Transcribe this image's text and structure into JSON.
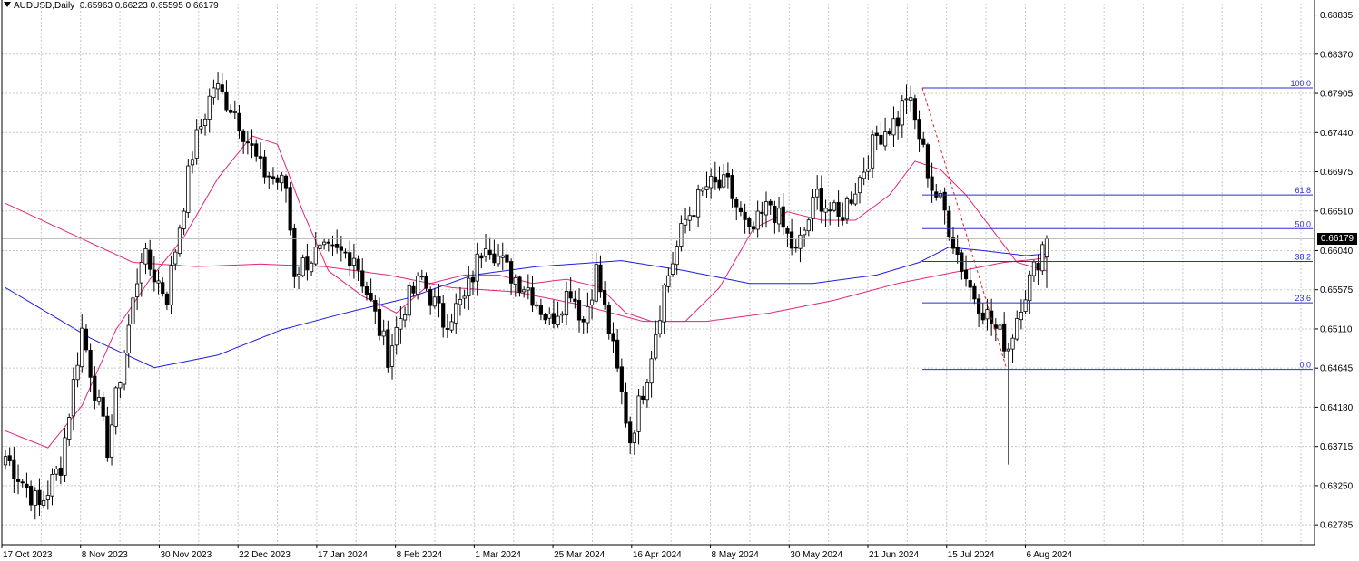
{
  "header": {
    "symbol": "AUDUSD,Daily",
    "ohlc": "0.65963 0.66223 0.65595 0.66179"
  },
  "current_price_label": "0.66179",
  "colors": {
    "candle": "#000000",
    "ma_blue": "#1e1ee6",
    "ma_pink": "#e0287a",
    "fib": "#2b2bd8",
    "trend_dash": "#e02020",
    "grid": "#c8c8c8"
  },
  "chart_data": {
    "type": "candlestick",
    "symbol": "AUDUSD",
    "timeframe": "Daily",
    "y_axis": {
      "ticks": [
        "0.68835",
        "0.68370",
        "0.67905",
        "0.67440",
        "0.66975",
        "0.66510",
        "0.66040",
        "0.65575",
        "0.65110",
        "0.64645",
        "0.64180",
        "0.63715",
        "0.63250",
        "0.62785"
      ],
      "ylim": [
        0.6255,
        0.6897
      ]
    },
    "x_axis": {
      "ticks": [
        "17 Oct 2023",
        "8 Nov 2023",
        "30 Nov 2023",
        "22 Dec 2023",
        "17 Jan 2024",
        "8 Feb 2024",
        "1 Mar 2024",
        "25 Mar 2024",
        "16 Apr 2024",
        "8 May 2024",
        "30 May 2024",
        "21 Jun 2024",
        "15 Jul 2024",
        "6 Aug 2024"
      ]
    },
    "price_anchors": [
      [
        0,
        0.636
      ],
      [
        8,
        0.63
      ],
      [
        13,
        0.635
      ],
      [
        18,
        0.651
      ],
      [
        24,
        0.637
      ],
      [
        32,
        0.66
      ],
      [
        38,
        0.655
      ],
      [
        44,
        0.672
      ],
      [
        49,
        0.68
      ],
      [
        54,
        0.677
      ],
      [
        60,
        0.67
      ],
      [
        66,
        0.668
      ],
      [
        68,
        0.658
      ],
      [
        73,
        0.66
      ],
      [
        78,
        0.66
      ],
      [
        82,
        0.66
      ],
      [
        86,
        0.654
      ],
      [
        90,
        0.648
      ],
      [
        94,
        0.654
      ],
      [
        98,
        0.657
      ],
      [
        103,
        0.652
      ],
      [
        108,
        0.6545
      ],
      [
        113,
        0.662
      ],
      [
        118,
        0.658
      ],
      [
        123,
        0.656
      ],
      [
        128,
        0.652
      ],
      [
        133,
        0.656
      ],
      [
        136,
        0.652
      ],
      [
        139,
        0.658
      ],
      [
        142,
        0.651
      ],
      [
        147,
        0.638
      ],
      [
        151,
        0.646
      ],
      [
        155,
        0.656
      ],
      [
        160,
        0.664
      ],
      [
        165,
        0.668
      ],
      [
        170,
        0.668
      ],
      [
        175,
        0.662
      ],
      [
        180,
        0.666
      ],
      [
        186,
        0.66
      ],
      [
        191,
        0.667
      ],
      [
        196,
        0.664
      ],
      [
        201,
        0.669
      ],
      [
        205,
        0.674
      ],
      [
        210,
        0.676
      ],
      [
        212,
        0.679
      ],
      [
        215,
        0.674
      ],
      [
        218,
        0.668
      ],
      [
        221,
        0.665
      ],
      [
        224,
        0.66
      ],
      [
        227,
        0.656
      ],
      [
        230,
        0.6535
      ],
      [
        233,
        0.651
      ],
      [
        236,
        0.649
      ],
      [
        239,
        0.6545
      ],
      [
        242,
        0.658
      ],
      [
        244,
        0.661
      ],
      [
        245,
        0.6618
      ]
    ],
    "moving_averages": [
      {
        "color": "#1e1ee6",
        "points": [
          [
            0,
            0.656
          ],
          [
            20,
            0.65
          ],
          [
            35,
            0.6465
          ],
          [
            50,
            0.648
          ],
          [
            65,
            0.651
          ],
          [
            80,
            0.653
          ],
          [
            95,
            0.6548
          ],
          [
            110,
            0.6575
          ],
          [
            125,
            0.6585
          ],
          [
            145,
            0.6592
          ],
          [
            160,
            0.658
          ],
          [
            175,
            0.6565
          ],
          [
            190,
            0.6565
          ],
          [
            205,
            0.6575
          ],
          [
            215,
            0.659
          ],
          [
            222,
            0.6608
          ],
          [
            230,
            0.6604
          ],
          [
            240,
            0.6598
          ],
          [
            245,
            0.66
          ]
        ]
      },
      {
        "color": "#e0287a",
        "points": [
          [
            0,
            0.666
          ],
          [
            15,
            0.6625
          ],
          [
            30,
            0.659
          ],
          [
            45,
            0.6585
          ],
          [
            60,
            0.6588
          ],
          [
            75,
            0.6585
          ],
          [
            90,
            0.6575
          ],
          [
            105,
            0.656
          ],
          [
            120,
            0.6555
          ],
          [
            135,
            0.654
          ],
          [
            150,
            0.652
          ],
          [
            165,
            0.652
          ],
          [
            180,
            0.653
          ],
          [
            195,
            0.6545
          ],
          [
            210,
            0.6565
          ],
          [
            225,
            0.658
          ],
          [
            235,
            0.659
          ],
          [
            245,
            0.6595
          ]
        ]
      },
      {
        "color": "#e0287a",
        "points": [
          [
            0,
            0.639
          ],
          [
            10,
            0.637
          ],
          [
            18,
            0.642
          ],
          [
            26,
            0.651
          ],
          [
            34,
            0.657
          ],
          [
            42,
            0.662
          ],
          [
            50,
            0.669
          ],
          [
            58,
            0.674
          ],
          [
            64,
            0.673
          ],
          [
            70,
            0.665
          ],
          [
            76,
            0.658
          ],
          [
            84,
            0.655
          ],
          [
            92,
            0.653
          ],
          [
            100,
            0.6565
          ],
          [
            108,
            0.6575
          ],
          [
            116,
            0.6575
          ],
          [
            124,
            0.6565
          ],
          [
            132,
            0.657
          ],
          [
            140,
            0.656
          ],
          [
            146,
            0.653
          ],
          [
            152,
            0.652
          ],
          [
            160,
            0.652
          ],
          [
            168,
            0.656
          ],
          [
            176,
            0.663
          ],
          [
            184,
            0.665
          ],
          [
            192,
            0.664
          ],
          [
            200,
            0.664
          ],
          [
            208,
            0.667
          ],
          [
            214,
            0.671
          ],
          [
            220,
            0.67
          ],
          [
            226,
            0.667
          ],
          [
            232,
            0.663
          ],
          [
            238,
            0.659
          ],
          [
            245,
            0.658
          ]
        ]
      }
    ],
    "fibonacci": {
      "levels": [
        {
          "label": "100.0",
          "value": 0.6797
        },
        {
          "label": "61.8",
          "value": 0.667
        },
        {
          "label": "50.0",
          "value": 0.663
        },
        {
          "label": "38.2",
          "value": 0.6591
        },
        {
          "label": "23.6",
          "value": 0.6542
        },
        {
          "label": "0.0",
          "value": 0.6463
        }
      ]
    },
    "current_price": 0.66179
  }
}
